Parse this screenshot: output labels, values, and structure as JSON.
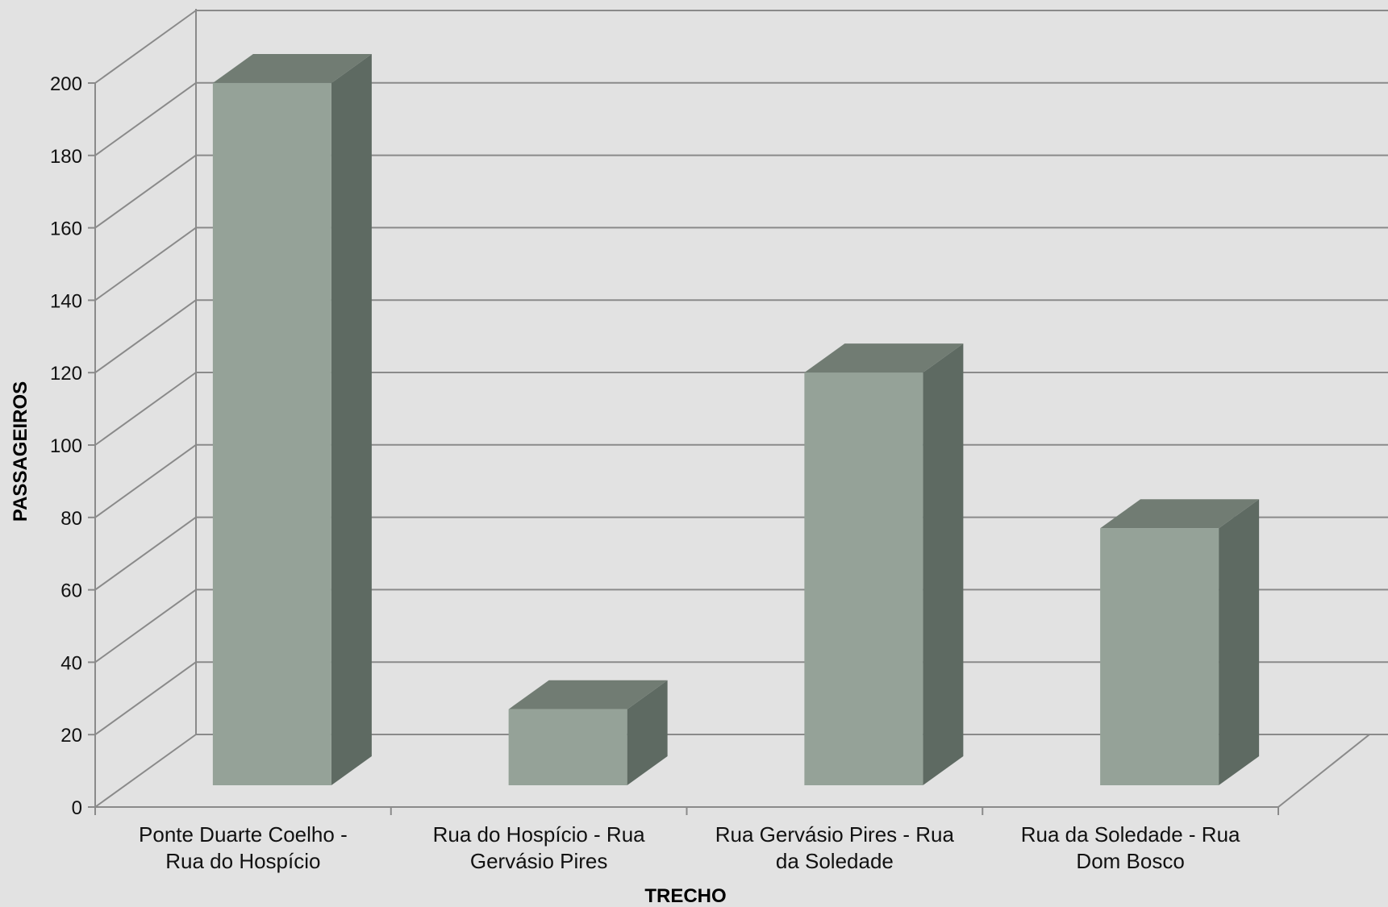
{
  "chart_data": {
    "type": "bar",
    "style": "3d-column",
    "categories": [
      [
        "Ponte Duarte Coelho -",
        "Rua do Hospício"
      ],
      [
        "Rua do Hospício - Rua",
        "Gervásio Pires"
      ],
      [
        "Rua Gervásio Pires - Rua",
        "da Soledade"
      ],
      [
        "Rua da Soledade - Rua",
        "Dom Bosco"
      ]
    ],
    "values": [
      194,
      21,
      114,
      71
    ],
    "xlabel": "TRECHO",
    "ylabel": "PASSAGEIROS",
    "ylim": [
      0,
      200
    ],
    "yticks": [
      0,
      20,
      40,
      60,
      80,
      100,
      120,
      140,
      160,
      180,
      200
    ],
    "grid": true,
    "colors": {
      "background": "#e2e2e2",
      "grid": "#8a8a8a",
      "bar_front": "#95a298",
      "bar_side": "#5e6a62",
      "bar_top": "#717c73"
    }
  }
}
